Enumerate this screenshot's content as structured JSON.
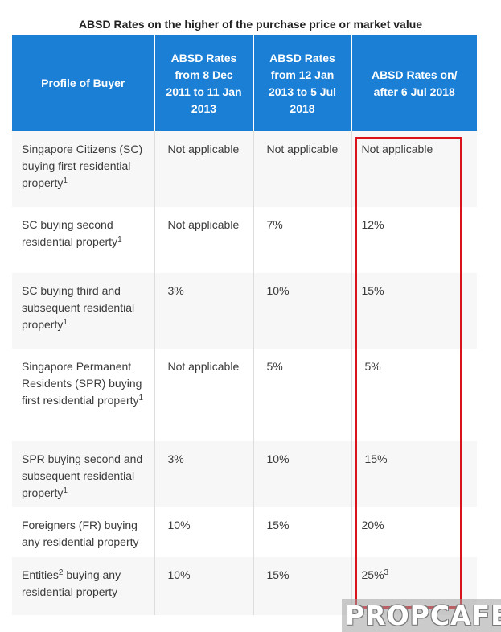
{
  "caption": "ABSD Rates on the higher of the purchase price or market value",
  "colors": {
    "header_bg": "#1b7fd6",
    "highlight_border": "#d9121b",
    "row_alt_bg": "#f7f7f7"
  },
  "table": {
    "headers": [
      "Profile of Buyer",
      "ABSD Rates from 8 Dec 2011 to 11 Jan 2013",
      "ABSD Rates from 12 Jan 2013 to 5 Jul 2018",
      "ABSD Rates on/ after 6 Jul 2018"
    ],
    "rows": [
      {
        "profile": "Singapore Citizens (SC) buying first residential property",
        "profile_sup": "1",
        "rate_2011": "Not applicable",
        "rate_2013": "Not applicable",
        "rate_2018": "Not applicable",
        "rate_2018_sup": ""
      },
      {
        "profile": "SC buying second residential property",
        "profile_sup": "1",
        "rate_2011": "Not applicable",
        "rate_2013": "7%",
        "rate_2018": "12%",
        "rate_2018_sup": ""
      },
      {
        "profile": "SC buying third and subsequent residential property",
        "profile_sup": "1",
        "rate_2011": "3%",
        "rate_2013": "10%",
        "rate_2018": "15%",
        "rate_2018_sup": ""
      },
      {
        "profile": "Singapore Permanent Residents (SPR) buying first residential property",
        "profile_sup": "1",
        "rate_2011": "Not applicable",
        "rate_2013": "5%",
        "rate_2018": "5%",
        "rate_2018_sup": ""
      },
      {
        "profile": "SPR buying second and subsequent residential property",
        "profile_sup": "1",
        "rate_2011": "3%",
        "rate_2013": "10%",
        "rate_2018": "15%",
        "rate_2018_sup": ""
      },
      {
        "profile": "Foreigners (FR) buying any residential property",
        "profile_sup": "",
        "rate_2011": "10%",
        "rate_2013": "15%",
        "rate_2018": "20%",
        "rate_2018_sup": ""
      },
      {
        "profile_a": "Entities",
        "profile_a_sup": "2",
        "profile_b": " buying any residential property",
        "rate_2011": "10%",
        "rate_2013": "15%",
        "rate_2018": "25%",
        "rate_2018_sup": "3"
      }
    ]
  },
  "watermark": "PROPCAFE"
}
